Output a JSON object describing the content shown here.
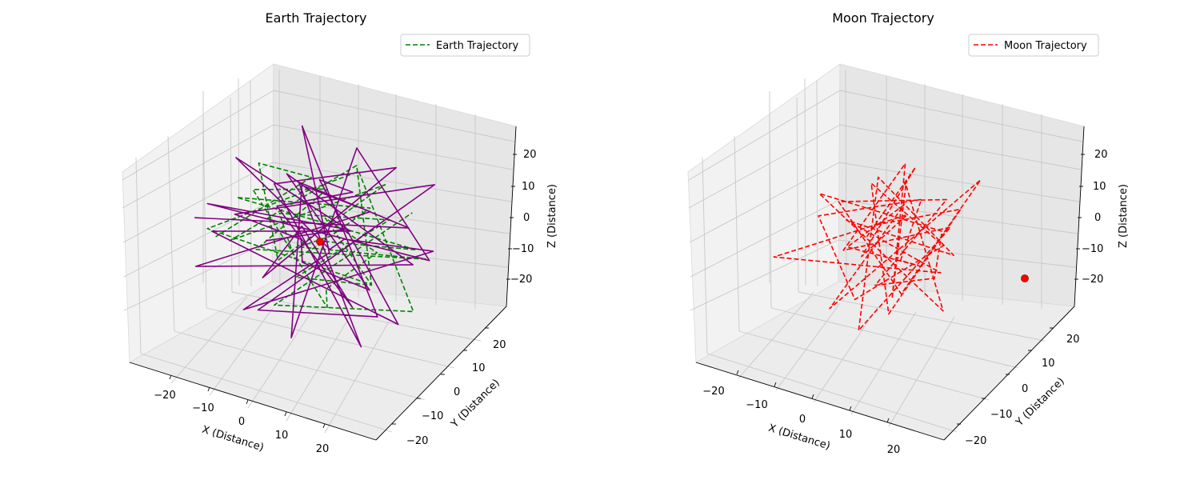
{
  "figure": {
    "charts": [
      {
        "title": "Earth Trajectory",
        "legend_label": "Earth Trajectory",
        "xlabel": "X (Distance)",
        "ylabel": "Y (Distance)",
        "zlabel": "Z (Distance)",
        "x_ticks": [
          "−20",
          "−10",
          "0",
          "10",
          "20"
        ],
        "y_ticks": [
          "−20",
          "−10",
          "0",
          "10",
          "20"
        ],
        "z_ticks": [
          "20",
          "10",
          "0",
          "−10",
          "−20"
        ]
      },
      {
        "title": "Moon Trajectory",
        "legend_label": "Moon Trajectory",
        "xlabel": "X (Distance)",
        "ylabel": "Y (Distance)",
        "zlabel": "Z (Distance)",
        "x_ticks": [
          "−20",
          "−10",
          "0",
          "10",
          "20"
        ],
        "y_ticks": [
          "−20",
          "−10",
          "0",
          "10",
          "20"
        ],
        "z_ticks": [
          "20",
          "10",
          "0",
          "−10",
          "−20"
        ]
      }
    ]
  },
  "chart_data": [
    {
      "type": "line",
      "projection": "3d",
      "title": "Earth Trajectory",
      "xlabel": "X (Distance)",
      "ylabel": "Y (Distance)",
      "zlabel": "Z (Distance)",
      "xlim": [
        -27,
        27
      ],
      "ylim": [
        -27,
        27
      ],
      "zlim": [
        -27,
        27
      ],
      "grid": true,
      "legend": {
        "placement": "top-right",
        "entries": [
          "Earth Trajectory"
        ]
      },
      "colors": {
        "earth": "#008000",
        "moon_overlay": "#800080",
        "marker": "#ff0000"
      },
      "series": [
        {
          "name": "Earth Trajectory",
          "style": "dashed",
          "color": "#008000",
          "points": [
            [
              -24,
              -3,
              -6
            ],
            [
              -10,
              12,
              8
            ],
            [
              -18,
              5,
              15
            ],
            [
              -5,
              -8,
              -2
            ],
            [
              7,
              14,
              11
            ],
            [
              -14,
              -12,
              4
            ],
            [
              3,
              10,
              19
            ],
            [
              16,
              -5,
              -4
            ],
            [
              -8,
              2,
              -17
            ],
            [
              12,
              8,
              6
            ],
            [
              -20,
              14,
              -10
            ],
            [
              5,
              -16,
              9
            ],
            [
              -3,
              6,
              -6
            ],
            [
              22,
              3,
              4
            ],
            [
              -16,
              -6,
              13
            ],
            [
              0,
              18,
              -3
            ],
            [
              10,
              -10,
              14
            ],
            [
              -12,
              9,
              -14
            ],
            [
              18,
              12,
              -8
            ],
            [
              -6,
              -14,
              6
            ],
            [
              4,
              -2,
              21
            ],
            [
              -22,
              8,
              2
            ],
            [
              14,
              -18,
              -2
            ],
            [
              -2,
              4,
              -20
            ],
            [
              20,
              -8,
              11
            ],
            [
              -10,
              16,
              -9
            ],
            [
              8,
              6,
              -16
            ],
            [
              -18,
              -14,
              8
            ],
            [
              2,
              12,
              15
            ],
            [
              24,
              -2,
              -12
            ],
            [
              -8,
              -6,
              -20
            ],
            [
              12,
              16,
              2
            ]
          ]
        },
        {
          "name": "",
          "style": "solid",
          "color": "#800080",
          "points": [
            [
              -18,
              6,
              -12
            ],
            [
              14,
              -10,
              18
            ],
            [
              -22,
              -8,
              10
            ],
            [
              20,
              10,
              -6
            ],
            [
              -4,
              20,
              14
            ],
            [
              6,
              -20,
              -14
            ],
            [
              -14,
              14,
              2
            ],
            [
              16,
              -4,
              20
            ],
            [
              -20,
              -16,
              -4
            ],
            [
              10,
              18,
              -18
            ],
            [
              -6,
              -2,
              22
            ],
            [
              22,
              -14,
              4
            ],
            [
              -12,
              10,
              -20
            ],
            [
              4,
              -12,
              12
            ],
            [
              -24,
              4,
              -4
            ],
            [
              18,
              16,
              14
            ],
            [
              -2,
              -20,
              -8
            ],
            [
              12,
              2,
              -22
            ],
            [
              -16,
              18,
              18
            ],
            [
              8,
              -8,
              6
            ],
            [
              -10,
              -14,
              -16
            ],
            [
              24,
              6,
              2
            ],
            [
              -4,
              14,
              -12
            ],
            [
              14,
              -16,
              16
            ],
            [
              -20,
              0,
              20
            ],
            [
              2,
              8,
              -2
            ],
            [
              -14,
              -18,
              12
            ],
            [
              20,
              -2,
              -18
            ],
            [
              -8,
              12,
              8
            ],
            [
              6,
              4,
              16
            ],
            [
              -22,
              16,
              -10
            ],
            [
              16,
              -12,
              -6
            ],
            [
              0,
              -6,
              10
            ],
            [
              -12,
              -4,
              -14
            ],
            [
              10,
              14,
              18
            ],
            [
              -18,
              10,
              4
            ],
            [
              22,
              -18,
              -12
            ],
            [
              -6,
              2,
              16
            ],
            [
              8,
              20,
              -8
            ],
            [
              -24,
              -10,
              6
            ]
          ]
        }
      ],
      "markers": [
        {
          "x": 0,
          "y": 0,
          "z": 0,
          "color": "#ff0000"
        }
      ]
    },
    {
      "type": "line",
      "projection": "3d",
      "title": "Moon Trajectory",
      "xlabel": "X (Distance)",
      "ylabel": "Y (Distance)",
      "zlabel": "Z (Distance)",
      "xlim": [
        -27,
        27
      ],
      "ylim": [
        -27,
        27
      ],
      "zlim": [
        -27,
        27
      ],
      "grid": true,
      "legend": {
        "placement": "top-right",
        "entries": [
          "Moon Trajectory"
        ]
      },
      "colors": {
        "moon": "#ff0000",
        "marker": "#ff0000"
      },
      "series": [
        {
          "name": "Moon Trajectory",
          "style": "dashed",
          "color": "#ff0000",
          "points": [
            [
              -2,
              -4,
              4
            ],
            [
              4,
              6,
              22
            ],
            [
              -8,
              2,
              -10
            ],
            [
              10,
              -6,
              18
            ],
            [
              -20,
              -12,
              -4
            ],
            [
              6,
              10,
              -16
            ],
            [
              -4,
              -8,
              12
            ],
            [
              14,
              4,
              -2
            ],
            [
              -10,
              12,
              8
            ],
            [
              2,
              -14,
              -18
            ],
            [
              18,
              -2,
              14
            ],
            [
              -14,
              4,
              -12
            ],
            [
              0,
              8,
              20
            ],
            [
              8,
              -10,
              -8
            ],
            [
              -6,
              16,
              4
            ],
            [
              12,
              2,
              -20
            ],
            [
              -12,
              -6,
              16
            ],
            [
              4,
              14,
              -6
            ],
            [
              22,
              -14,
              8
            ],
            [
              -2,
              -2,
              -14
            ],
            [
              10,
              8,
              12
            ],
            [
              -16,
              6,
              2
            ],
            [
              6,
              -4,
              -12
            ],
            [
              16,
              12,
              18
            ],
            [
              -8,
              -10,
              -18
            ],
            [
              2,
              4,
              10
            ],
            [
              -10,
              0,
              -6
            ],
            [
              14,
              -8,
              4
            ],
            [
              -4,
              10,
              -16
            ],
            [
              8,
              2,
              16
            ],
            [
              -14,
              -4,
              6
            ],
            [
              0,
              -12,
              -10
            ],
            [
              10,
              6,
              -2
            ],
            [
              -6,
              4,
              14
            ],
            [
              4,
              -6,
              -18
            ],
            [
              12,
              10,
              8
            ],
            [
              -8,
              8,
              -4
            ]
          ]
        }
      ],
      "markers": [
        {
          "x": 20,
          "y": 20,
          "z": -20,
          "color": "#ff0000"
        }
      ]
    }
  ]
}
